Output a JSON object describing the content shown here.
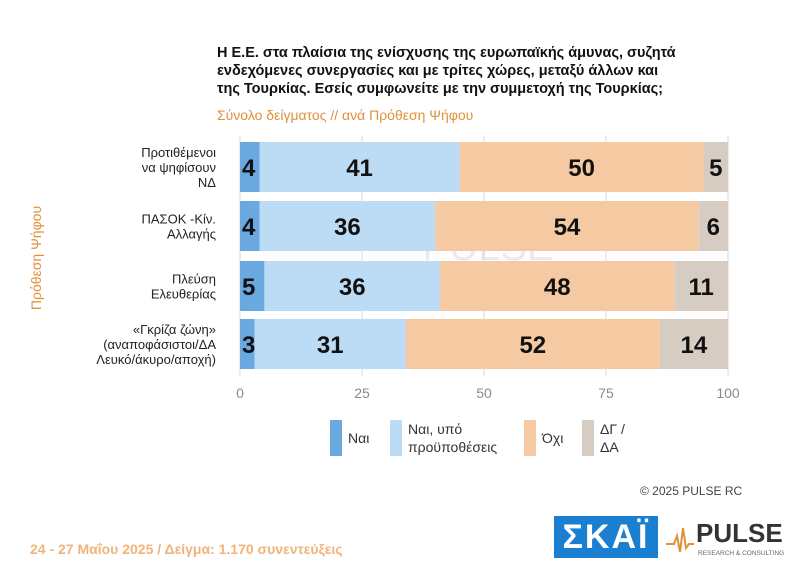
{
  "title": {
    "lines": [
      "Η Ε.Ε. στα πλαίσια της ενίσχυσης της ευρωπαϊκής άμυνας, συζητά",
      "ενδεχόμενες συνεργασίες και με τρίτες χώρες, μεταξύ άλλων και",
      "της Τουρκίας. Εσείς συμφωνείτε με την συμμετοχή της Τουρκίας;"
    ],
    "subtitle": "Σύνολο δείγματος // ανά Πρόθεση Ψήφου"
  },
  "axis_title": "Πρόθεση Ψήφου",
  "chart_data": {
    "type": "bar",
    "orientation": "horizontal",
    "stacked": true,
    "categories": [
      [
        "Προτιθέμενοι",
        "να ψηφίσουν",
        "ΝΔ"
      ],
      [
        "ΠΑΣΟΚ -Κίν.",
        "Αλλαγής"
      ],
      [
        "Πλεύση",
        "Ελευθερίας"
      ],
      [
        "«Γκρίζα ζώνη»",
        "(αναποφάσιστοι/ΔΑ",
        "Λευκό/άκυρο/αποχή)"
      ]
    ],
    "series": [
      {
        "name": "Ναι",
        "color": "#6aa8e0",
        "values": [
          4,
          4,
          5,
          3
        ]
      },
      {
        "name": "Ναι, υπό προϋποθέσεις",
        "color": "#bcdcf5",
        "values": [
          41,
          36,
          36,
          31
        ]
      },
      {
        "name": "Όχι",
        "color": "#f5c9a1",
        "values": [
          50,
          54,
          48,
          52
        ]
      },
      {
        "name": "ΔΓ / ΔΑ",
        "color": "#d7ccc1",
        "values": [
          5,
          6,
          11,
          14
        ]
      }
    ],
    "xlim": [
      0,
      100
    ],
    "xticks": [
      0,
      25,
      50,
      75,
      100
    ],
    "grid": true,
    "legend_position": "bottom"
  },
  "legend": [
    {
      "label": "Ναι",
      "color": "#6aa8e0"
    },
    {
      "label": "Ναι, υπό\nπροϋποθέσεις",
      "color": "#bcdcf5"
    },
    {
      "label": "Όχι",
      "color": "#f5c9a1"
    },
    {
      "label": "ΔΓ /\nΔΑ",
      "color": "#d7ccc1"
    }
  ],
  "watermark": {
    "name": "PULSE",
    "tagline": "RESEARCH & CONSULTING"
  },
  "copyright": "© 2025 PULSE RC",
  "footer": "24 - 27 Μαΐου 2025  /  Δείγμα:  1.170 συνεντεύξεις",
  "logos": {
    "skai": "ΣΚΑΪ",
    "pulse": "PULSE",
    "pulse_tagline": "RESEARCH & CONSULTING"
  }
}
